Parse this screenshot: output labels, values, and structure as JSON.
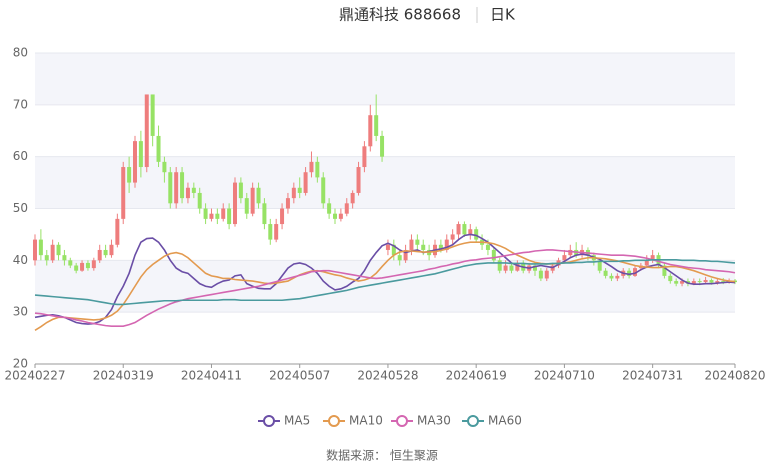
{
  "chart_data": {
    "type": "candlestick",
    "title": "鼎通科技 688668",
    "period": "日K",
    "source": "数据来源： 恒生聚源",
    "categories": [
      "20240227",
      null,
      null,
      null,
      null,
      null,
      null,
      null,
      null,
      null,
      null,
      null,
      null,
      null,
      null,
      "20240319",
      null,
      null,
      null,
      null,
      null,
      null,
      null,
      null,
      null,
      null,
      null,
      null,
      null,
      null,
      "20240411",
      null,
      null,
      null,
      null,
      null,
      null,
      null,
      null,
      null,
      null,
      null,
      null,
      null,
      null,
      "20240507",
      null,
      null,
      null,
      null,
      null,
      null,
      null,
      null,
      null,
      null,
      null,
      null,
      null,
      null,
      "20240528",
      null,
      null,
      null,
      null,
      null,
      null,
      null,
      null,
      null,
      null,
      null,
      null,
      null,
      null,
      "20240619",
      null,
      null,
      null,
      null,
      null,
      null,
      null,
      null,
      null,
      null,
      null,
      null,
      null,
      null,
      "20240710",
      null,
      null,
      null,
      null,
      null,
      null,
      null,
      null,
      null,
      null,
      null,
      null,
      null,
      null,
      "20240731",
      null,
      null,
      null,
      null,
      null,
      null,
      null,
      null,
      null,
      null,
      null,
      null,
      null,
      "20240820"
    ],
    "open": [
      40,
      44,
      41,
      40,
      43,
      41,
      40,
      39,
      38,
      39.5,
      38.5,
      40,
      42,
      41,
      43,
      48,
      58,
      55,
      63,
      58,
      72,
      64,
      59,
      57,
      51,
      57,
      52,
      54,
      53,
      50,
      48,
      49,
      48,
      50,
      47,
      55,
      52,
      49,
      54,
      51,
      47,
      44,
      47,
      50,
      52,
      54,
      53,
      57,
      59,
      56,
      51,
      49,
      48,
      49,
      51,
      53,
      58,
      62,
      68,
      64,
      42,
      43,
      41,
      40,
      42,
      44,
      43,
      42,
      41,
      43,
      42,
      44,
      45,
      47,
      45,
      46,
      44,
      43,
      42,
      40,
      38,
      39,
      38,
      39.5,
      38,
      39,
      38,
      36.5,
      38,
      39,
      40,
      41,
      42,
      41,
      42,
      41,
      40,
      38,
      37,
      36.5,
      37,
      38,
      37,
      38.5,
      39,
      40,
      41,
      39,
      37,
      36,
      35.5,
      36,
      35.5,
      36,
      35.8,
      36.2,
      35.7,
      36,
      35.8,
      36.1
    ],
    "close": [
      44,
      41,
      40,
      43,
      41,
      40,
      39,
      38,
      39.5,
      38.5,
      40,
      42,
      41,
      43,
      48,
      58,
      55,
      63,
      58,
      72,
      64,
      59,
      57,
      51,
      57,
      52,
      54,
      53,
      50,
      48,
      49,
      48,
      50,
      47,
      55,
      52,
      49,
      54,
      51,
      47,
      44,
      47,
      50,
      52,
      54,
      53,
      57,
      59,
      56,
      51,
      49,
      48,
      49,
      51,
      53,
      58,
      62,
      68,
      64,
      60,
      43,
      41,
      40,
      42,
      44,
      43,
      42,
      41,
      43,
      42,
      44,
      45,
      47,
      45,
      46,
      44,
      43,
      42,
      40,
      38,
      39,
      38,
      39.5,
      38,
      39,
      38,
      36.5,
      38,
      39,
      40,
      41,
      42,
      41,
      42,
      41,
      40,
      38,
      37,
      36.5,
      37,
      38,
      37,
      38.5,
      39,
      40,
      41,
      39,
      37,
      36,
      35.5,
      36,
      35.5,
      36,
      35.8,
      36.2,
      35.7,
      36,
      35.8,
      36.1,
      35.8
    ],
    "low": [
      39,
      40,
      39,
      39.5,
      40,
      39,
      38.5,
      37.5,
      37.8,
      38,
      38,
      39.5,
      40.5,
      40.5,
      42.5,
      47,
      53,
      54,
      56,
      57,
      62,
      58,
      55,
      50,
      50,
      51,
      51,
      52,
      49,
      47,
      47.5,
      47,
      47.5,
      46,
      46.5,
      51,
      48,
      48.5,
      50,
      46,
      43,
      43.5,
      46,
      49,
      51,
      52,
      52.5,
      56,
      55,
      50,
      48,
      47,
      47.5,
      48.5,
      50,
      52.5,
      57,
      61,
      63,
      59,
      41,
      40,
      39,
      39.5,
      41,
      42,
      41,
      40,
      40.5,
      41.5,
      41.5,
      43,
      44,
      44.5,
      44,
      43.5,
      42,
      41,
      39.5,
      37.5,
      37.5,
      37.5,
      37.8,
      37.5,
      37.5,
      37,
      36,
      36,
      37.5,
      38.5,
      39.5,
      40.5,
      40.5,
      40.5,
      40,
      39,
      37.5,
      36.5,
      36,
      36,
      36.5,
      36.5,
      36.8,
      38,
      38.5,
      39.5,
      38.5,
      36.5,
      35.5,
      35,
      35,
      35,
      35.2,
      35.2,
      35.5,
      35.3,
      35.3,
      35.4,
      35.5,
      35.4
    ],
    "high": [
      45,
      46,
      42,
      44,
      43.5,
      42,
      40.5,
      39.5,
      40,
      40,
      40.5,
      43,
      43,
      44,
      49,
      59,
      60,
      64,
      65,
      72,
      72,
      66,
      60,
      58,
      58,
      58,
      55,
      55,
      54,
      51,
      50,
      50,
      51,
      51,
      56,
      56,
      53,
      55,
      55,
      52,
      48,
      48,
      51,
      53,
      55,
      56,
      58,
      61,
      60,
      57,
      52,
      50,
      50,
      52,
      53.5,
      59,
      63,
      70,
      72,
      65,
      44,
      44,
      42,
      43,
      45,
      45,
      44,
      43,
      44,
      44,
      45,
      46,
      47.5,
      47.5,
      47,
      46.5,
      45,
      44,
      42.5,
      40.5,
      40,
      39.5,
      40,
      40,
      39.5,
      39.5,
      38.5,
      38.5,
      39.5,
      40.5,
      42,
      43,
      43.5,
      43,
      42.5,
      41.5,
      40.5,
      38.5,
      37.5,
      37.5,
      38.5,
      38.5,
      39,
      39.5,
      41,
      42,
      41.5,
      39.5,
      37.5,
      36.5,
      36.5,
      36.5,
      36.5,
      36.5,
      36.8,
      36.5,
      36.5,
      36.6,
      36.5,
      36.4
    ],
    "up_color": "#ee7d7d",
    "down_color": "#97e265",
    "series": [
      {
        "name": "MA5",
        "color": "#6a4ea6",
        "values": [
          29.0,
          29.2,
          29.4,
          29.5,
          29.3,
          29.0,
          28.5,
          28.0,
          27.8,
          27.7,
          27.8,
          28.2,
          29.0,
          30.5,
          33.0,
          35.0,
          37.5,
          41.0,
          43.5,
          44.2,
          44.3,
          43.5,
          42.0,
          40.0,
          38.5,
          37.8,
          37.5,
          36.5,
          35.5,
          35.0,
          34.8,
          35.5,
          36.0,
          36.2,
          37.0,
          37.2,
          35.5,
          35.0,
          34.6,
          34.5,
          34.5,
          35.5,
          37.0,
          38.5,
          39.3,
          39.5,
          39.2,
          38.5,
          37.5,
          36.0,
          35.0,
          34.3,
          34.5,
          35.0,
          35.8,
          36.5,
          38.0,
          40.0,
          41.5,
          42.8,
          43.3,
          42.8,
          42.0,
          41.5,
          41.8,
          42.0,
          41.5,
          41.7,
          42.0,
          42.2,
          42.5,
          43.0,
          44.0,
          44.8,
          45.0,
          44.8,
          44.2,
          43.5,
          42.5,
          41.5,
          40.5,
          39.5,
          39.0,
          38.7,
          38.5,
          38.8,
          39.0,
          38.8,
          38.6,
          39.2,
          39.8,
          40.5,
          41.0,
          41.2,
          41.0,
          40.6,
          40.2,
          39.5,
          38.8,
          38.0,
          37.5,
          37.3,
          37.5,
          38.2,
          38.7,
          39.0,
          39.2,
          38.6,
          37.8,
          37.0,
          36.2,
          35.6,
          35.4,
          35.4,
          35.5,
          35.5,
          35.6,
          35.7,
          35.8,
          35.7
        ]
      },
      {
        "name": "MA10",
        "color": "#e39a4f",
        "values": [
          26.5,
          27.2,
          28.0,
          28.6,
          29.0,
          29.0,
          28.9,
          28.8,
          28.7,
          28.6,
          28.5,
          28.6,
          28.9,
          29.4,
          30.2,
          31.5,
          33.2,
          35.0,
          36.8,
          38.2,
          39.2,
          40.0,
          40.8,
          41.3,
          41.5,
          41.2,
          40.5,
          39.5,
          38.5,
          37.5,
          37.0,
          36.8,
          36.5,
          36.5,
          36.3,
          36.2,
          36.1,
          36.0,
          35.8,
          35.6,
          35.5,
          35.6,
          35.8,
          36.0,
          36.6,
          37.2,
          37.6,
          37.9,
          38.0,
          37.8,
          37.5,
          37.2,
          37.0,
          36.6,
          36.3,
          36.0,
          36.2,
          36.6,
          37.5,
          38.8,
          40.0,
          41.0,
          41.6,
          41.8,
          41.8,
          41.7,
          41.6,
          41.6,
          41.7,
          41.9,
          42.2,
          42.6,
          43.0,
          43.3,
          43.5,
          43.5,
          43.5,
          43.4,
          43.2,
          42.8,
          42.3,
          41.6,
          41.0,
          40.5,
          40.0,
          39.6,
          39.4,
          39.3,
          39.3,
          39.4,
          39.5,
          39.7,
          40.0,
          40.3,
          40.5,
          40.5,
          40.4,
          40.3,
          40.1,
          39.9,
          39.6,
          39.3,
          39.0,
          38.8,
          38.7,
          38.6,
          38.6,
          38.7,
          38.8,
          38.8,
          38.6,
          38.3,
          38.0,
          37.6,
          37.2,
          36.8,
          36.5,
          36.2,
          36.0,
          35.9
        ]
      },
      {
        "name": "MA30",
        "color": "#d466b1",
        "values": [
          29.8,
          29.7,
          29.5,
          29.3,
          29.1,
          29.0,
          28.8,
          28.5,
          28.3,
          28.0,
          27.8,
          27.6,
          27.4,
          27.3,
          27.3,
          27.3,
          27.6,
          28.0,
          28.7,
          29.4,
          30.0,
          30.6,
          31.1,
          31.6,
          32.0,
          32.3,
          32.6,
          32.8,
          33.0,
          33.2,
          33.4,
          33.6,
          33.8,
          34.0,
          34.2,
          34.4,
          34.6,
          34.8,
          35.0,
          35.3,
          35.6,
          35.9,
          36.2,
          36.5,
          36.8,
          37.1,
          37.4,
          37.8,
          37.9,
          38.0,
          38.0,
          37.8,
          37.6,
          37.4,
          37.2,
          37.0,
          36.8,
          36.6,
          36.5,
          36.6,
          36.8,
          37.0,
          37.2,
          37.4,
          37.6,
          37.8,
          38.0,
          38.3,
          38.5,
          38.8,
          39.0,
          39.3,
          39.5,
          39.8,
          40.0,
          40.1,
          40.3,
          40.4,
          40.5,
          40.7,
          40.9,
          41.1,
          41.3,
          41.5,
          41.6,
          41.8,
          41.9,
          42.0,
          42.0,
          41.9,
          41.8,
          41.7,
          41.6,
          41.5,
          41.4,
          41.3,
          41.2,
          41.1,
          41.0,
          41.0,
          41.0,
          40.9,
          40.8,
          40.6,
          40.4,
          40.1,
          39.8,
          39.5,
          39.2,
          39.0,
          38.8,
          38.6,
          38.5,
          38.4,
          38.2,
          38.1,
          38.0,
          37.9,
          37.8,
          37.6
        ]
      },
      {
        "name": "MA60",
        "color": "#4a9a9e",
        "values": [
          33.3,
          33.2,
          33.1,
          33.0,
          32.9,
          32.8,
          32.7,
          32.6,
          32.5,
          32.4,
          32.2,
          32.0,
          31.8,
          31.6,
          31.5,
          31.5,
          31.6,
          31.7,
          31.8,
          31.9,
          32.0,
          32.1,
          32.2,
          32.2,
          32.2,
          32.3,
          32.3,
          32.3,
          32.3,
          32.3,
          32.3,
          32.3,
          32.4,
          32.4,
          32.4,
          32.3,
          32.3,
          32.3,
          32.3,
          32.3,
          32.3,
          32.3,
          32.3,
          32.4,
          32.5,
          32.6,
          32.8,
          33.0,
          33.2,
          33.4,
          33.6,
          33.8,
          34.0,
          34.2,
          34.5,
          34.8,
          35.0,
          35.2,
          35.4,
          35.6,
          35.8,
          36.0,
          36.2,
          36.4,
          36.6,
          36.8,
          37.0,
          37.2,
          37.4,
          37.7,
          38.0,
          38.3,
          38.6,
          38.9,
          39.1,
          39.3,
          39.4,
          39.5,
          39.5,
          39.5,
          39.5,
          39.4,
          39.4,
          39.4,
          39.3,
          39.3,
          39.3,
          39.3,
          39.4,
          39.4,
          39.5,
          39.5,
          39.6,
          39.6,
          39.7,
          39.7,
          39.8,
          39.8,
          39.8,
          39.8,
          39.9,
          39.9,
          40.0,
          40.0,
          40.0,
          40.1,
          40.1,
          40.1,
          40.1,
          40.1,
          40.0,
          40.0,
          40.0,
          39.9,
          39.9,
          39.8,
          39.8,
          39.7,
          39.6,
          39.5
        ]
      }
    ],
    "ylim": [
      20,
      80
    ],
    "yticks": [
      20,
      30,
      40,
      50,
      60,
      70,
      80
    ],
    "grid": true
  }
}
